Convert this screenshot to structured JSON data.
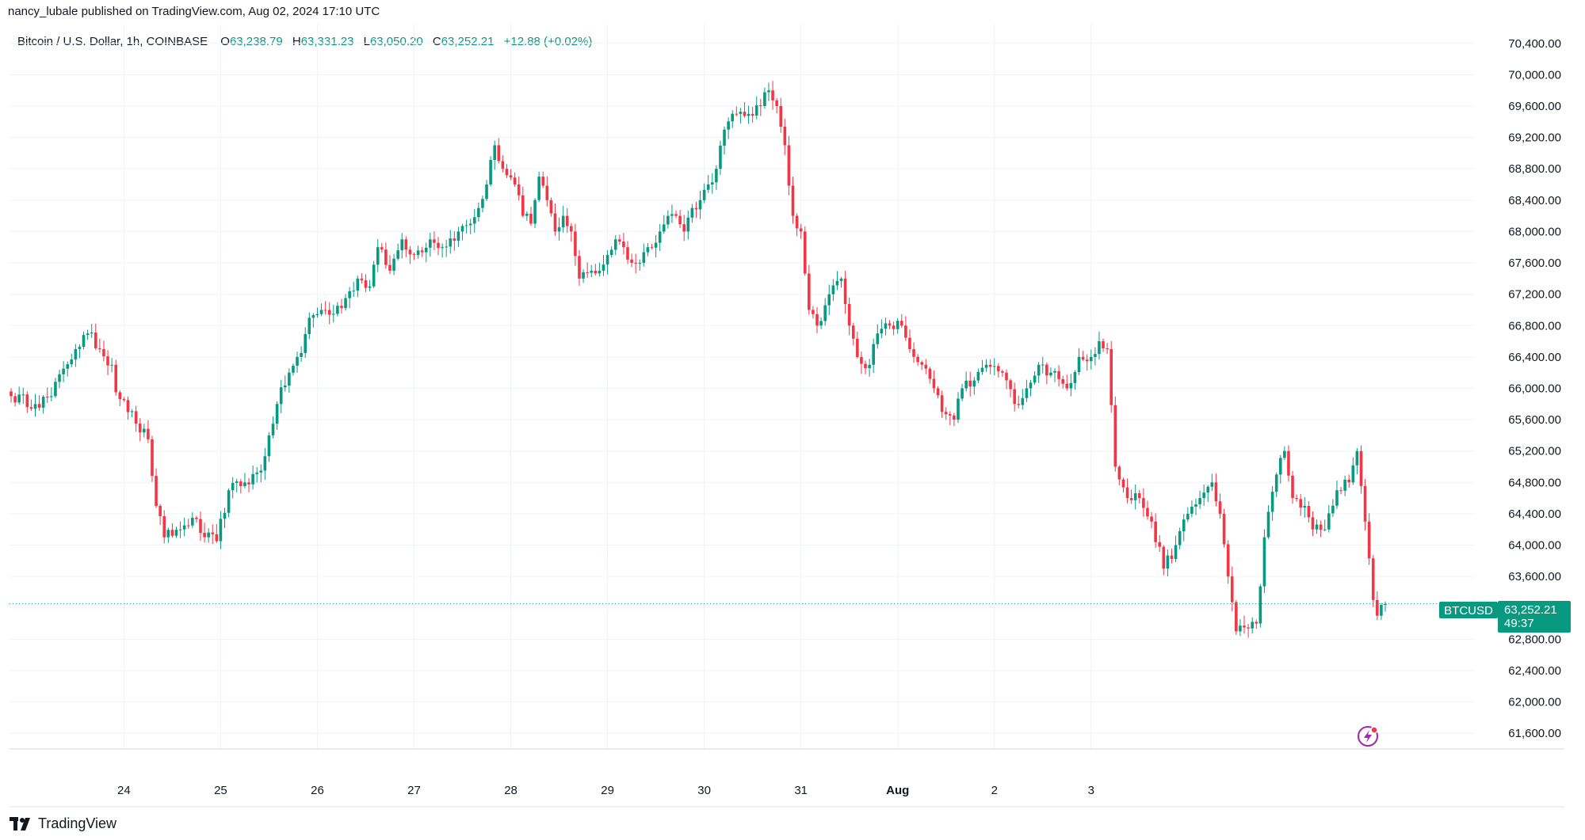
{
  "header": {
    "published": "nancy_lubale published on TradingView.com, Aug 02, 2024 17:10 UTC"
  },
  "legend": {
    "symbol": "Bitcoin / U.S. Dollar, 1h, COINBASE",
    "o_key": "O",
    "o_val": "63,238.79",
    "h_key": "H",
    "h_val": "63,331.23",
    "l_key": "L",
    "l_val": "63,050.20",
    "c_key": "C",
    "c_val": "63,252.21",
    "change": "+12.88 (+0.02%)"
  },
  "price_label": {
    "ticker": "BTCUSD",
    "price": "63,252.21",
    "countdown": "49:37"
  },
  "footer": {
    "brand": "TradingView"
  },
  "colors": {
    "up": "#089981",
    "down": "#F23645",
    "grid": "#F0F3FA",
    "last_price_line": "#089981",
    "flash_icon": "#9C27B0"
  },
  "icons": {
    "flash": "lightning-bolt-icon",
    "logo": "tradingview-logo-icon"
  },
  "chart_data": {
    "type": "candlestick",
    "interval": "1h",
    "y_axis_side": "right",
    "ylim": [
      61400,
      70650
    ],
    "y_ticks": [
      "70,400.00",
      "70,000.00",
      "69,600.00",
      "69,200.00",
      "68,800.00",
      "68,400.00",
      "68,000.00",
      "67,600.00",
      "67,200.00",
      "66,800.00",
      "66,400.00",
      "66,000.00",
      "65,600.00",
      "65,200.00",
      "64,800.00",
      "64,400.00",
      "64,000.00",
      "63,600.00",
      "63,200.00",
      "62,800.00",
      "62,400.00",
      "62,000.00",
      "61,600.00"
    ],
    "y_tick_values": [
      70400,
      70000,
      69600,
      69200,
      68800,
      68400,
      68000,
      67600,
      67200,
      66800,
      66400,
      66000,
      65600,
      65200,
      64800,
      64400,
      64000,
      63600,
      63200,
      62800,
      62400,
      62000,
      61600
    ],
    "x_ticks": [
      "24",
      "25",
      "26",
      "27",
      "28",
      "29",
      "30",
      "31",
      "Aug",
      "2",
      "3"
    ],
    "x_tick_bold": [
      false,
      false,
      false,
      false,
      false,
      false,
      false,
      false,
      true,
      false,
      false
    ],
    "last_price": 63252.21,
    "anchor_points": [
      [
        0,
        65900
      ],
      [
        6,
        65800
      ],
      [
        10,
        65900
      ],
      [
        13,
        66250
      ],
      [
        16,
        66500
      ],
      [
        19,
        66700
      ],
      [
        22,
        66500
      ],
      [
        25,
        66300
      ],
      [
        26,
        65950
      ],
      [
        28,
        65850
      ],
      [
        31,
        65550
      ],
      [
        34,
        65350
      ],
      [
        36,
        64500
      ],
      [
        38,
        64100
      ],
      [
        42,
        64200
      ],
      [
        45,
        64350
      ],
      [
        48,
        64100
      ],
      [
        51,
        64050
      ],
      [
        54,
        64700
      ],
      [
        58,
        64800
      ],
      [
        62,
        64950
      ],
      [
        64,
        65400
      ],
      [
        66,
        65800
      ],
      [
        69,
        66200
      ],
      [
        72,
        66450
      ],
      [
        74,
        66900
      ],
      [
        77,
        67000
      ],
      [
        80,
        66950
      ],
      [
        83,
        67150
      ],
      [
        86,
        67400
      ],
      [
        89,
        67300
      ],
      [
        91,
        67800
      ],
      [
        94,
        67500
      ],
      [
        97,
        67900
      ],
      [
        100,
        67700
      ],
      [
        104,
        67900
      ],
      [
        107,
        67800
      ],
      [
        111,
        68000
      ],
      [
        114,
        68100
      ],
      [
        116,
        68300
      ],
      [
        118,
        68600
      ],
      [
        120,
        69100
      ],
      [
        122,
        68800
      ],
      [
        125,
        68600
      ],
      [
        127,
        68200
      ],
      [
        129,
        68100
      ],
      [
        131,
        68700
      ],
      [
        133,
        68400
      ],
      [
        135,
        68000
      ],
      [
        137,
        68200
      ],
      [
        139,
        68000
      ],
      [
        141,
        67400
      ],
      [
        144,
        67500
      ],
      [
        146,
        67500
      ],
      [
        148,
        67700
      ],
      [
        150,
        67900
      ],
      [
        152,
        67800
      ],
      [
        154,
        67600
      ],
      [
        156,
        67600
      ],
      [
        158,
        67800
      ],
      [
        161,
        68000
      ],
      [
        163,
        68200
      ],
      [
        165,
        68200
      ],
      [
        167,
        68000
      ],
      [
        169,
        68300
      ],
      [
        171,
        68400
      ],
      [
        173,
        68600
      ],
      [
        175,
        68800
      ],
      [
        177,
        69300
      ],
      [
        180,
        69500
      ],
      [
        183,
        69500
      ],
      [
        186,
        69600
      ],
      [
        188,
        69800
      ],
      [
        190,
        69600
      ],
      [
        192,
        69100
      ],
      [
        194,
        68200
      ],
      [
        196,
        68000
      ],
      [
        198,
        67000
      ],
      [
        200,
        66800
      ],
      [
        203,
        67200
      ],
      [
        206,
        67400
      ],
      [
        208,
        66800
      ],
      [
        210,
        66400
      ],
      [
        213,
        66300
      ],
      [
        215,
        66700
      ],
      [
        218,
        66800
      ],
      [
        221,
        66800
      ],
      [
        223,
        66500
      ],
      [
        226,
        66300
      ],
      [
        229,
        66000
      ],
      [
        231,
        65700
      ],
      [
        234,
        65600
      ],
      [
        236,
        66000
      ],
      [
        239,
        66100
      ],
      [
        242,
        66300
      ],
      [
        246,
        66200
      ],
      [
        249,
        65800
      ],
      [
        252,
        66000
      ],
      [
        255,
        66300
      ],
      [
        258,
        66200
      ],
      [
        262,
        66000
      ],
      [
        265,
        66400
      ],
      [
        268,
        66400
      ],
      [
        270,
        66600
      ],
      [
        272,
        66500
      ],
      [
        274,
        65000
      ],
      [
        277,
        64600
      ],
      [
        280,
        64600
      ],
      [
        283,
        64300
      ],
      [
        286,
        63700
      ],
      [
        289,
        64000
      ],
      [
        292,
        64400
      ],
      [
        295,
        64600
      ],
      [
        298,
        64800
      ],
      [
        300,
        64400
      ],
      [
        302,
        63600
      ],
      [
        304,
        62900
      ],
      [
        306,
        62950
      ],
      [
        309,
        63000
      ],
      [
        311,
        64100
      ],
      [
        314,
        64900
      ],
      [
        316,
        65200
      ],
      [
        318,
        64600
      ],
      [
        321,
        64500
      ],
      [
        323,
        64200
      ],
      [
        326,
        64200
      ],
      [
        329,
        64700
      ],
      [
        332,
        64800
      ],
      [
        334,
        65200
      ],
      [
        336,
        64300
      ],
      [
        338,
        63300
      ],
      [
        339,
        63100
      ],
      [
        341,
        63250
      ]
    ]
  }
}
